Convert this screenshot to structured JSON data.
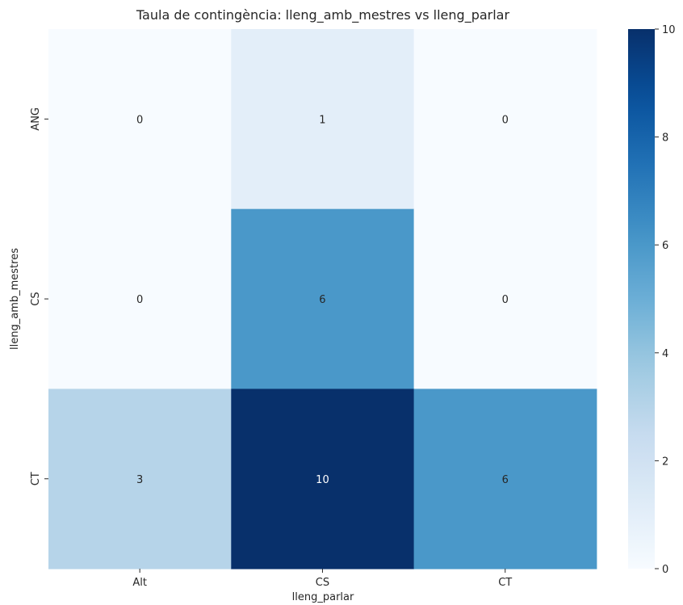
{
  "chart_data": {
    "type": "heatmap",
    "title": "Taula de contingència: lleng_amb_mestres vs lleng_parlar",
    "xlabel": "lleng_parlar",
    "ylabel": "lleng_amb_mestres",
    "x_categories": [
      "Alt",
      "CS",
      "CT"
    ],
    "y_categories": [
      "ANG",
      "CS",
      "CT"
    ],
    "values": [
      [
        0,
        1,
        0
      ],
      [
        0,
        6,
        0
      ],
      [
        3,
        10,
        6
      ]
    ],
    "colormap": "Blues",
    "colorbar": {
      "min": 0,
      "max": 10,
      "ticks": [
        0,
        2,
        4,
        6,
        8,
        10
      ]
    },
    "colors": {
      "low": "#f7fbff",
      "high": "#08306b",
      "text_dark": "#262626",
      "text_light": "#ffffff"
    }
  }
}
